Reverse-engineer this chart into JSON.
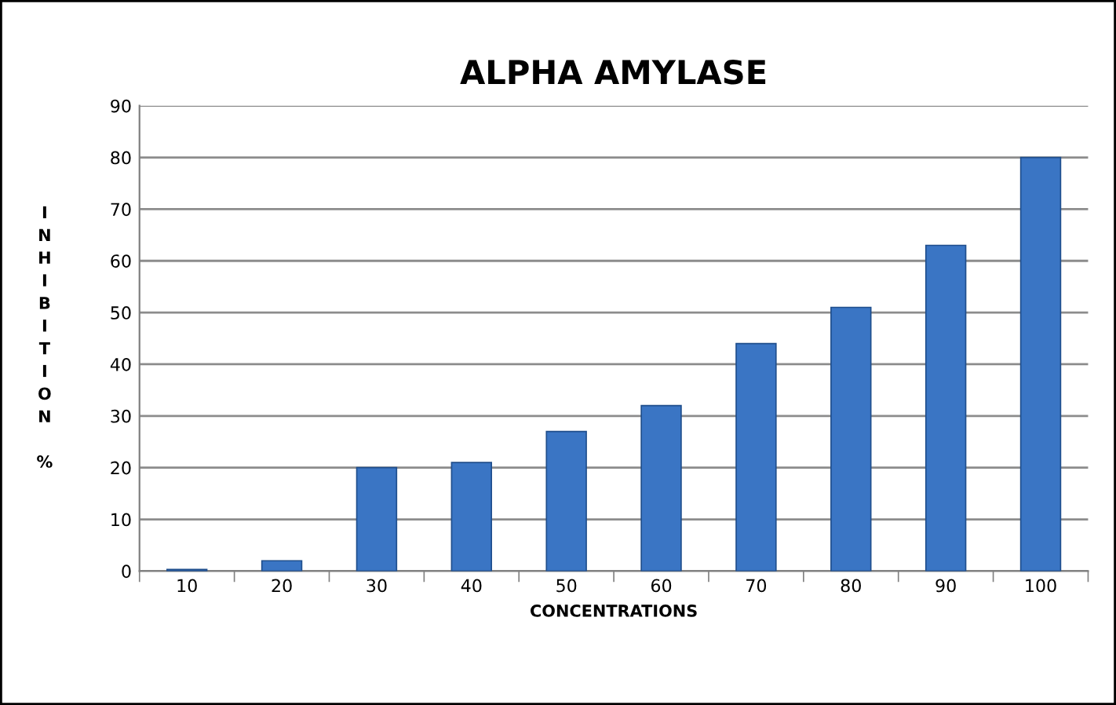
{
  "chart_data": {
    "type": "bar",
    "title": "ALPHA AMYLASE",
    "xlabel": "CONCENTRATIONS",
    "ylabel": "INHIBITION %",
    "categories": [
      "10",
      "20",
      "30",
      "40",
      "50",
      "60",
      "70",
      "80",
      "90",
      "100"
    ],
    "values": [
      0.3,
      2,
      20,
      21,
      27,
      32,
      44,
      51,
      63,
      80
    ],
    "color": "#3a75c4",
    "ylim": [
      0,
      90
    ],
    "yticks": [
      0,
      10,
      20,
      30,
      40,
      50,
      60,
      70,
      80,
      90
    ],
    "grid": "y",
    "legend": false
  }
}
